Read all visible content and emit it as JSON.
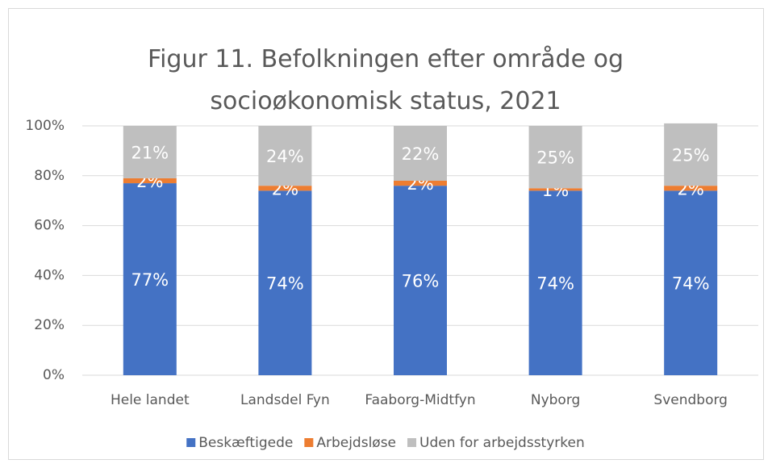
{
  "chart_data": {
    "type": "stacked_bar",
    "title": "Figur 11. Befolkningen efter område og socioøkonomisk status, 2021",
    "categories": [
      "Hele landet",
      "Landsdel Fyn",
      "Faaborg-Midtfyn",
      "Nyborg",
      "Svendborg"
    ],
    "series": [
      {
        "name": "Beskæftigede",
        "color": "#4472c4",
        "values": [
          77,
          74,
          76,
          74,
          74
        ],
        "value_labels": [
          "77%",
          "74%",
          "76%",
          "74%",
          "74%"
        ]
      },
      {
        "name": "Arbejdsløse",
        "color": "#ed7d31",
        "values": [
          2,
          2,
          2,
          1,
          2
        ],
        "value_labels": [
          "2%",
          "2%",
          "2%",
          "1%",
          "2%"
        ]
      },
      {
        "name": "Uden for arbejdsstyrken",
        "color": "#bfbfbf",
        "values": [
          21,
          24,
          22,
          25,
          25
        ],
        "value_labels": [
          "21%",
          "24%",
          "22%",
          "25%",
          "25%"
        ]
      }
    ],
    "ylim": [
      0,
      100
    ],
    "yticks": [
      {
        "value": 0,
        "label": "0%"
      },
      {
        "value": 20,
        "label": "20%"
      },
      {
        "value": 40,
        "label": "40%"
      },
      {
        "value": 60,
        "label": "60%"
      },
      {
        "value": 80,
        "label": "80%"
      },
      {
        "value": 100,
        "label": "100%"
      }
    ],
    "grid": true,
    "legend": "bottom"
  }
}
